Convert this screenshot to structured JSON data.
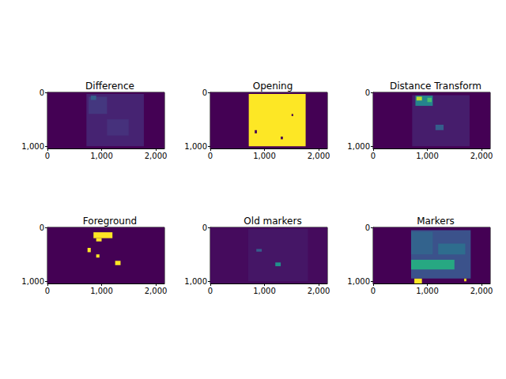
{
  "chart_data": [
    {
      "type": "image",
      "title": "Difference",
      "xlim": [
        0,
        2160
      ],
      "ylim": [
        1040,
        0
      ],
      "xticks": [
        0,
        1000,
        2000
      ],
      "yticks": [
        0,
        1000
      ],
      "color_range": [
        0,
        1
      ],
      "cells": [
        {
          "x": [
            0,
            2160
          ],
          "y": [
            0,
            1040
          ],
          "value": 0
        },
        {
          "x": [
            720,
            1780
          ],
          "y": [
            30,
            1000
          ],
          "value": 0.1
        },
        {
          "x": [
            760,
            1100
          ],
          "y": [
            80,
            400
          ],
          "value": 0.16
        },
        {
          "x": [
            1100,
            1500
          ],
          "y": [
            500,
            800
          ],
          "value": 0.14
        },
        {
          "x": [
            800,
            900
          ],
          "y": [
            60,
            140
          ],
          "value": 0.3
        }
      ]
    },
    {
      "type": "image",
      "title": "Opening",
      "xlim": [
        0,
        2160
      ],
      "ylim": [
        1040,
        0
      ],
      "xticks": [
        0,
        1000,
        2000
      ],
      "yticks": [
        0,
        1000
      ],
      "color_range": [
        0,
        1
      ],
      "cells": [
        {
          "x": [
            0,
            2160
          ],
          "y": [
            0,
            1040
          ],
          "value": 0
        },
        {
          "x": [
            710,
            1760
          ],
          "y": [
            30,
            1000
          ],
          "value": 1
        },
        {
          "x": [
            820,
            860
          ],
          "y": [
            700,
            760
          ],
          "value": 0
        },
        {
          "x": [
            1300,
            1340
          ],
          "y": [
            820,
            870
          ],
          "value": 0
        },
        {
          "x": [
            1500,
            1530
          ],
          "y": [
            400,
            440
          ],
          "value": 0
        }
      ]
    },
    {
      "type": "image",
      "title": "Distance Transform",
      "xlim": [
        0,
        2160
      ],
      "ylim": [
        1040,
        0
      ],
      "xticks": [
        0,
        1000,
        2000
      ],
      "yticks": [
        0,
        1000
      ],
      "color_range": [
        0,
        1
      ],
      "cells": [
        {
          "x": [
            0,
            2160
          ],
          "y": [
            0,
            1040
          ],
          "value": 0
        },
        {
          "x": [
            720,
            1780
          ],
          "y": [
            50,
            1000
          ],
          "value": 0.08
        },
        {
          "x": [
            780,
            1100
          ],
          "y": [
            60,
            250
          ],
          "value": 0.45
        },
        {
          "x": [
            800,
            900
          ],
          "y": [
            80,
            150
          ],
          "value": 0.9
        },
        {
          "x": [
            1000,
            1080
          ],
          "y": [
            100,
            180
          ],
          "value": 0.7
        },
        {
          "x": [
            1150,
            1300
          ],
          "y": [
            600,
            700
          ],
          "value": 0.3
        }
      ]
    },
    {
      "type": "image",
      "title": "Foreground",
      "xlim": [
        0,
        2160
      ],
      "ylim": [
        1040,
        0
      ],
      "xticks": [
        0,
        1000,
        2000
      ],
      "yticks": [
        0,
        1000
      ],
      "color_range": [
        0,
        1
      ],
      "cells": [
        {
          "x": [
            0,
            2160
          ],
          "y": [
            0,
            1040
          ],
          "value": 0
        },
        {
          "x": [
            850,
            1200
          ],
          "y": [
            90,
            200
          ],
          "value": 1
        },
        {
          "x": [
            900,
            1000
          ],
          "y": [
            200,
            260
          ],
          "value": 1
        },
        {
          "x": [
            740,
            800
          ],
          "y": [
            380,
            460
          ],
          "value": 1
        },
        {
          "x": [
            1250,
            1350
          ],
          "y": [
            620,
            700
          ],
          "value": 1
        },
        {
          "x": [
            900,
            960
          ],
          "y": [
            500,
            560
          ],
          "value": 1
        }
      ]
    },
    {
      "type": "image",
      "title": "Old markers",
      "xlim": [
        0,
        2160
      ],
      "ylim": [
        1040,
        0
      ],
      "xticks": [
        0,
        1000,
        2000
      ],
      "yticks": [
        0,
        1000
      ],
      "color_range": [
        0,
        1
      ],
      "cells": [
        {
          "x": [
            0,
            2160
          ],
          "y": [
            0,
            1040
          ],
          "value": 0.03
        },
        {
          "x": [
            700,
            1800
          ],
          "y": [
            30,
            1000
          ],
          "value": 0.06
        },
        {
          "x": [
            1200,
            1300
          ],
          "y": [
            650,
            720
          ],
          "value": 0.5
        },
        {
          "x": [
            850,
            950
          ],
          "y": [
            400,
            450
          ],
          "value": 0.3
        }
      ]
    },
    {
      "type": "image",
      "title": "Markers",
      "xlim": [
        0,
        2160
      ],
      "ylim": [
        1040,
        0
      ],
      "xticks": [
        0,
        1000,
        2000
      ],
      "yticks": [
        0,
        1000
      ],
      "color_range": [
        0,
        1
      ],
      "cells": [
        {
          "x": [
            0,
            2160
          ],
          "y": [
            0,
            1040
          ],
          "value": 0
        },
        {
          "x": [
            700,
            1800
          ],
          "y": [
            50,
            950
          ],
          "value": 0.25
        },
        {
          "x": [
            700,
            1100
          ],
          "y": [
            80,
            500
          ],
          "value": 0.32
        },
        {
          "x": [
            1200,
            1700
          ],
          "y": [
            300,
            500
          ],
          "value": 0.36
        },
        {
          "x": [
            700,
            1500
          ],
          "y": [
            600,
            780
          ],
          "value": 0.6
        },
        {
          "x": [
            760,
            900
          ],
          "y": [
            950,
            1040
          ],
          "value": 1
        },
        {
          "x": [
            1680,
            1720
          ],
          "y": [
            950,
            1000
          ],
          "value": 1
        }
      ]
    }
  ]
}
